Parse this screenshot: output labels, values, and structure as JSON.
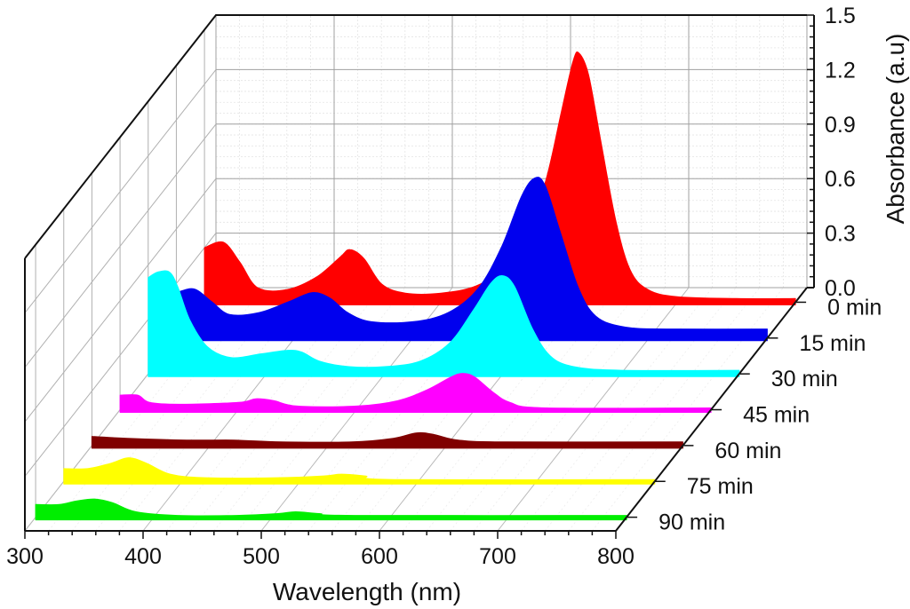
{
  "chart_data": {
    "type": "area",
    "subtype": "3d-waterfall",
    "title": "",
    "xlabel": "Wavelength (nm)",
    "zlabel": "Absorbance (a.u)",
    "ylabel": "",
    "xlim": [
      300,
      800
    ],
    "zlim": [
      0.0,
      1.5
    ],
    "x_ticks": [
      300,
      400,
      500,
      600,
      700,
      800
    ],
    "x_tick_labels": [
      "300",
      "400",
      "500",
      "600",
      "700",
      "800"
    ],
    "z_ticks": [
      0.0,
      0.3,
      0.6,
      0.9,
      1.2,
      1.5
    ],
    "z_tick_labels": [
      "0.0",
      "0.3",
      "0.6",
      "0.9",
      "1.2",
      "1.5"
    ],
    "grid": true,
    "series": [
      {
        "name": "0 min",
        "color": "#ff0000",
        "points": [
          [
            300,
            0.3
          ],
          [
            316,
            0.33
          ],
          [
            330,
            0.22
          ],
          [
            345,
            0.08
          ],
          [
            370,
            0.07
          ],
          [
            395,
            0.14
          ],
          [
            415,
            0.25
          ],
          [
            423,
            0.29
          ],
          [
            435,
            0.24
          ],
          [
            450,
            0.1
          ],
          [
            470,
            0.05
          ],
          [
            500,
            0.05
          ],
          [
            530,
            0.09
          ],
          [
            555,
            0.2
          ],
          [
            575,
            0.4
          ],
          [
            590,
            0.7
          ],
          [
            602,
            1.05
          ],
          [
            612,
            1.33
          ],
          [
            617,
            1.37
          ],
          [
            625,
            1.25
          ],
          [
            635,
            0.9
          ],
          [
            648,
            0.45
          ],
          [
            660,
            0.18
          ],
          [
            675,
            0.07
          ],
          [
            700,
            0.03
          ],
          [
            750,
            0.02
          ],
          [
            800,
            0.02
          ]
        ]
      },
      {
        "name": "15 min",
        "color": "#0000ee",
        "points": [
          [
            300,
            0.25
          ],
          [
            315,
            0.27
          ],
          [
            330,
            0.2
          ],
          [
            345,
            0.13
          ],
          [
            370,
            0.14
          ],
          [
            395,
            0.2
          ],
          [
            415,
            0.25
          ],
          [
            430,
            0.22
          ],
          [
            445,
            0.14
          ],
          [
            465,
            0.09
          ],
          [
            500,
            0.09
          ],
          [
            530,
            0.14
          ],
          [
            555,
            0.27
          ],
          [
            575,
            0.5
          ],
          [
            592,
            0.78
          ],
          [
            603,
            0.88
          ],
          [
            612,
            0.84
          ],
          [
            625,
            0.58
          ],
          [
            640,
            0.28
          ],
          [
            655,
            0.12
          ],
          [
            680,
            0.06
          ],
          [
            720,
            0.05
          ],
          [
            800,
            0.05
          ]
        ]
      },
      {
        "name": "30 min",
        "color": "#00ffff",
        "points": [
          [
            300,
            0.53
          ],
          [
            308,
            0.56
          ],
          [
            318,
            0.56
          ],
          [
            325,
            0.48
          ],
          [
            335,
            0.3
          ],
          [
            350,
            0.15
          ],
          [
            370,
            0.09
          ],
          [
            395,
            0.11
          ],
          [
            418,
            0.13
          ],
          [
            430,
            0.12
          ],
          [
            445,
            0.07
          ],
          [
            470,
            0.04
          ],
          [
            500,
            0.04
          ],
          [
            530,
            0.07
          ],
          [
            555,
            0.17
          ],
          [
            575,
            0.35
          ],
          [
            590,
            0.5
          ],
          [
            600,
            0.54
          ],
          [
            610,
            0.48
          ],
          [
            625,
            0.25
          ],
          [
            640,
            0.1
          ],
          [
            660,
            0.04
          ],
          [
            700,
            0.02
          ],
          [
            800,
            0.02
          ]
        ]
      },
      {
        "name": "45 min",
        "color": "#ff00ff",
        "points": [
          [
            300,
            0.08
          ],
          [
            315,
            0.08
          ],
          [
            325,
            0.04
          ],
          [
            350,
            0.03
          ],
          [
            400,
            0.04
          ],
          [
            415,
            0.06
          ],
          [
            430,
            0.05
          ],
          [
            450,
            0.02
          ],
          [
            500,
            0.02
          ],
          [
            535,
            0.05
          ],
          [
            560,
            0.11
          ],
          [
            580,
            0.18
          ],
          [
            590,
            0.2
          ],
          [
            600,
            0.18
          ],
          [
            615,
            0.1
          ],
          [
            630,
            0.04
          ],
          [
            660,
            0.01
          ],
          [
            800,
            0.01
          ]
        ]
      },
      {
        "name": "60 min",
        "color": "#800000",
        "points": [
          [
            300,
            0.05
          ],
          [
            330,
            0.04
          ],
          [
            380,
            0.03
          ],
          [
            420,
            0.03
          ],
          [
            460,
            0.02
          ],
          [
            520,
            0.02
          ],
          [
            555,
            0.04
          ],
          [
            575,
            0.07
          ],
          [
            590,
            0.06
          ],
          [
            610,
            0.03
          ],
          [
            650,
            0.02
          ],
          [
            800,
            0.02
          ]
        ]
      },
      {
        "name": "75 min",
        "color": "#ffff00",
        "points": [
          [
            300,
            0.07
          ],
          [
            320,
            0.07
          ],
          [
            340,
            0.1
          ],
          [
            355,
            0.13
          ],
          [
            370,
            0.1
          ],
          [
            390,
            0.04
          ],
          [
            420,
            0.02
          ],
          [
            480,
            0.02
          ],
          [
            520,
            0.03
          ],
          [
            535,
            0.04
          ],
          [
            555,
            0.03
          ],
          [
            580,
            0.01
          ],
          [
            800,
            0.01
          ]
        ]
      },
      {
        "name": "90 min",
        "color": "#00ee00",
        "points": [
          [
            300,
            0.07
          ],
          [
            320,
            0.07
          ],
          [
            335,
            0.09
          ],
          [
            350,
            0.1
          ],
          [
            365,
            0.08
          ],
          [
            385,
            0.03
          ],
          [
            420,
            0.01
          ],
          [
            470,
            0.01
          ],
          [
            505,
            0.02
          ],
          [
            520,
            0.03
          ],
          [
            540,
            0.02
          ],
          [
            570,
            0.01
          ],
          [
            800,
            0.01
          ]
        ]
      }
    ],
    "depth_labels": [
      "0 min",
      "15 min",
      "30 min",
      "45 min",
      "60 min",
      "75 min",
      "90 min"
    ]
  }
}
